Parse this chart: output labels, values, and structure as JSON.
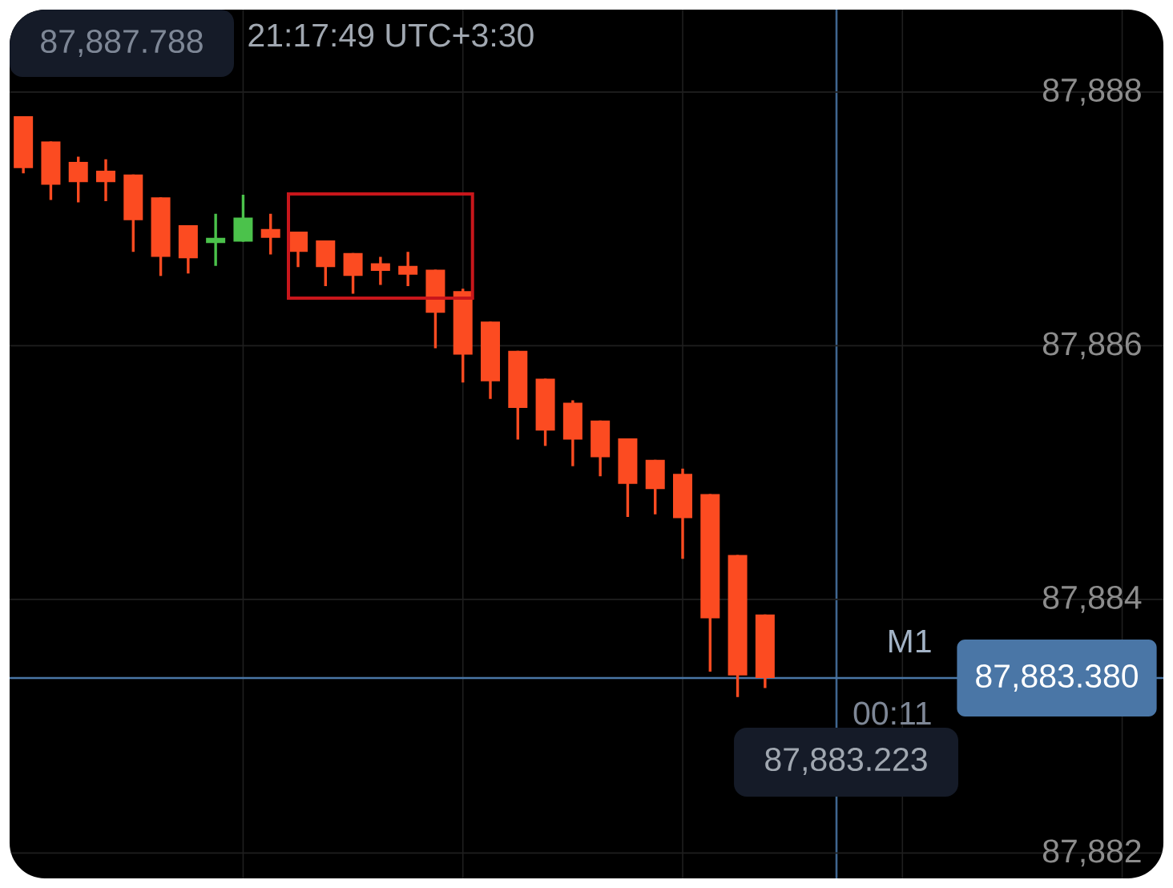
{
  "chart_data": {
    "type": "candlestick",
    "categories": [
      null,
      null,
      null,
      null,
      null,
      null,
      null,
      null,
      null,
      null,
      null,
      null,
      null,
      null,
      null,
      null,
      null,
      null,
      null,
      null,
      null,
      null,
      null,
      null,
      null,
      null,
      null,
      null,
      null,
      null,
      null,
      null,
      null,
      null,
      null,
      null,
      null,
      null,
      null,
      null,
      null,
      null
    ],
    "ohlc": [
      [
        87887.81,
        87887.81,
        87887.36,
        87887.4
      ],
      [
        87887.61,
        87887.61,
        87887.15,
        87887.27
      ],
      [
        87887.45,
        87887.49,
        87887.13,
        87887.29
      ],
      [
        87887.38,
        87887.47,
        87887.14,
        87887.29
      ],
      [
        87887.35,
        87887.35,
        87886.74,
        87886.99
      ],
      [
        87887.17,
        87887.17,
        87886.55,
        87886.7
      ],
      [
        87886.95,
        87886.95,
        87886.57,
        87886.69
      ],
      [
        87886.81,
        87887.04,
        87886.63,
        87886.85
      ],
      [
        87886.82,
        87887.19,
        87886.82,
        87887.01
      ],
      [
        87886.92,
        87887.04,
        87886.72,
        87886.85
      ],
      [
        87886.9,
        87886.9,
        87886.62,
        87886.74
      ],
      [
        87886.83,
        87886.83,
        87886.47,
        87886.62
      ],
      [
        87886.73,
        87886.73,
        87886.41,
        87886.55
      ],
      [
        87886.65,
        87886.7,
        87886.48,
        87886.59
      ],
      [
        87886.63,
        87886.74,
        87886.47,
        87886.56
      ],
      [
        87886.6,
        87886.6,
        87885.98,
        87886.26
      ],
      [
        87886.43,
        87886.45,
        87885.71,
        87885.93
      ],
      [
        87886.19,
        87886.19,
        87885.58,
        87885.72
      ],
      [
        87885.96,
        87885.96,
        87885.26,
        87885.51
      ],
      [
        87885.74,
        87885.74,
        87885.21,
        87885.33
      ],
      [
        87885.55,
        87885.57,
        87885.05,
        87885.26
      ],
      [
        87885.41,
        87885.41,
        87884.97,
        87885.12
      ],
      [
        87885.27,
        87885.27,
        87884.65,
        87884.91
      ],
      [
        87885.1,
        87885.1,
        87884.67,
        87884.87
      ],
      [
        87884.99,
        87885.03,
        87884.32,
        87884.64
      ],
      [
        87884.83,
        87884.83,
        87883.43,
        87883.85
      ],
      [
        87884.35,
        87884.35,
        87883.23,
        87883.4
      ],
      [
        87883.88,
        87883.88,
        87883.3,
        87883.38
      ],
      null,
      null,
      null,
      null,
      null,
      null,
      null,
      null,
      null,
      null,
      null,
      null,
      null,
      null
    ],
    "colors": [
      "#fc4b21",
      "#fc4b21",
      "#fc4b21",
      "#fc4b21",
      "#fc4b21",
      "#fc4b21",
      "#fc4b21",
      "#4bc24b",
      "#4bc24b",
      "#fc4b21",
      "#fc4b21",
      "#fc4b21",
      "#fc4b21",
      "#fc4b21",
      "#fc4b21",
      "#fc4b21",
      "#fc4b21",
      "#fc4b21",
      "#fc4b21",
      "#fc4b21",
      "#fc4b21",
      "#fc4b21",
      "#fc4b21",
      "#fc4b21",
      "#fc4b21",
      "#fc4b21",
      "#fc4b21",
      "#fc4b21",
      null,
      null,
      null,
      null,
      null,
      null,
      null,
      null,
      null,
      null,
      null,
      null,
      null,
      null
    ],
    "ylim": [
      87881.8,
      87888.65
    ],
    "yticks": [
      {
        "value": 87882,
        "label": "87,882"
      },
      {
        "value": 87884,
        "label": "87,884"
      },
      {
        "value": 87886,
        "label": "87,886"
      },
      {
        "value": 87888,
        "label": "87,888"
      }
    ],
    "grid": true,
    "tick_labels": "y",
    "ref_lines": [
      {
        "axis": "y",
        "value": 87883.38,
        "label": "87,883.380",
        "color": "#4a76a6"
      }
    ],
    "annotations": [
      "21:17:49 UTC+3:30",
      "87,887.788",
      "M1",
      "00:11",
      "87,883.223"
    ]
  }
}
